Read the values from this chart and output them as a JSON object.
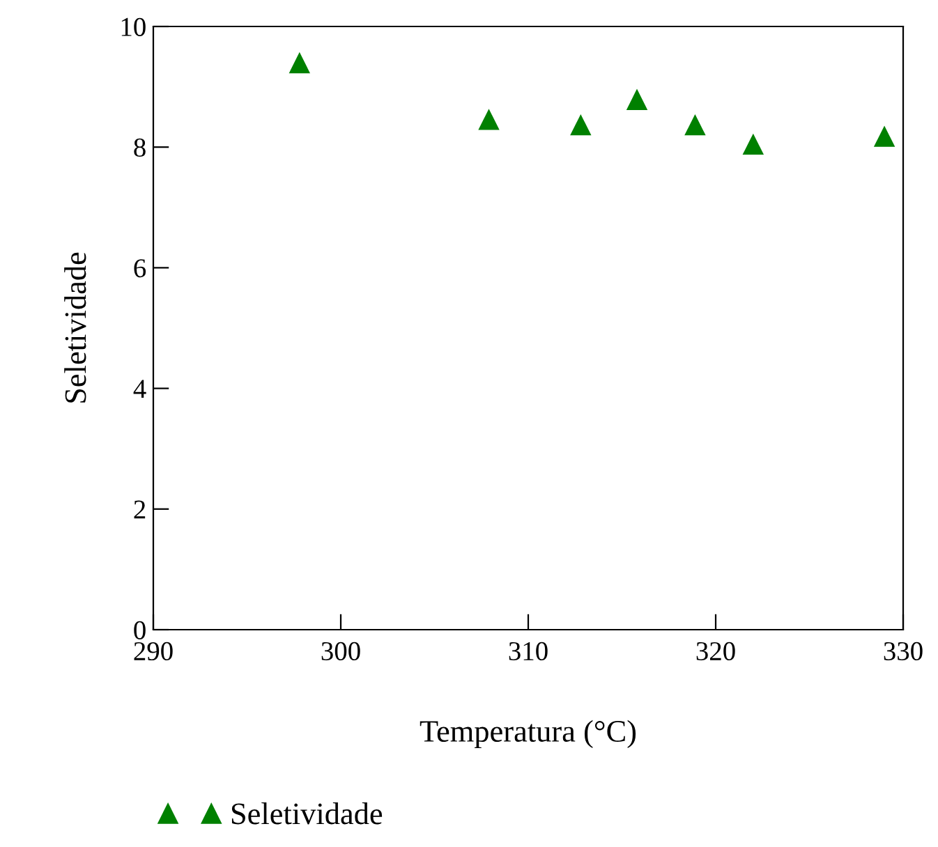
{
  "chart_data": {
    "type": "scatter",
    "xlabel": "Temperatura (°C)",
    "ylabel": "Seletividade",
    "x": [
      297.8,
      307.9,
      312.8,
      315.8,
      318.9,
      322.0,
      329.0
    ],
    "series": [
      {
        "name": "Seletividade",
        "color": "#008000",
        "values": [
          9.4,
          8.46,
          8.37,
          8.79,
          8.37,
          8.05,
          8.18
        ]
      }
    ],
    "xlim": [
      290,
      330
    ],
    "xticks": [
      290,
      300,
      310,
      320,
      330
    ],
    "ylim": [
      0,
      10
    ],
    "yticks": [
      0,
      2,
      4,
      6,
      8,
      10
    ],
    "marker": "triangle",
    "grid": false,
    "legend": "bottom left"
  }
}
